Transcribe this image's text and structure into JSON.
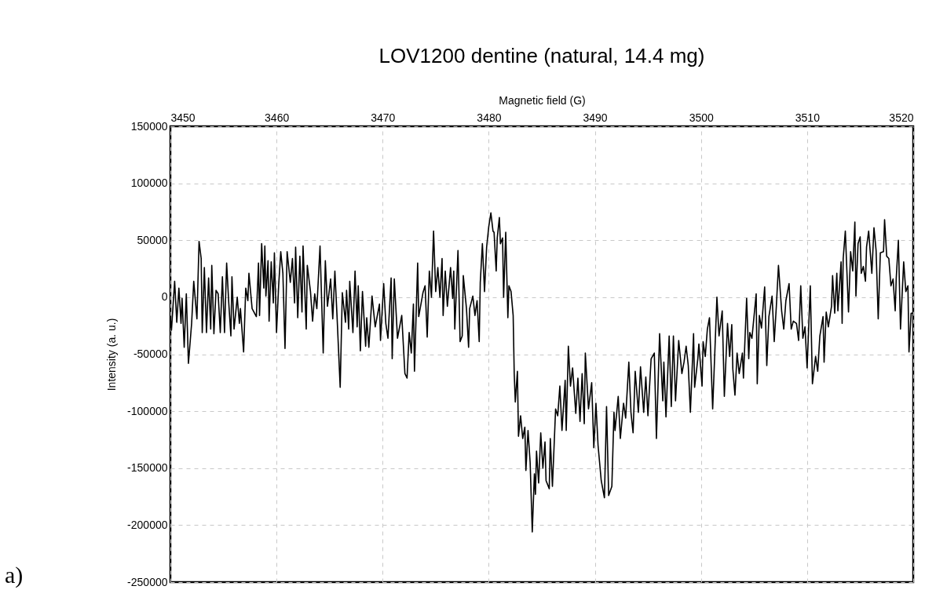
{
  "chart_data": {
    "type": "line",
    "title": "LOV1200 dentine (natural, 14.4 mg)",
    "xlabel": "Magnetic field (G)",
    "ylabel": "Intensity (a. u.)",
    "annotations": [
      "a)"
    ],
    "xlim": [
      3450,
      3520
    ],
    "xticks": [
      3450,
      3460,
      3470,
      3480,
      3490,
      3500,
      3510,
      3520
    ],
    "ylim": [
      -250000,
      150000
    ],
    "yticks": [
      -250000,
      -200000,
      -150000,
      -100000,
      -50000,
      0,
      50000,
      100000,
      150000
    ],
    "grid": true,
    "marker": "none",
    "line_style": "solid",
    "series": [
      {
        "color": "#000000",
        "x": [
          3450,
          3450.1,
          3450.4,
          3450.6,
          3450.8,
          3451.0,
          3451.1,
          3451.3,
          3451.5,
          3451.7,
          3452.0,
          3452.2,
          3452.5,
          3452.7,
          3452.9,
          3453.0,
          3453.2,
          3453.4,
          3453.6,
          3453.8,
          3453.9,
          3454.1,
          3454.3,
          3454.5,
          3454.7,
          3454.9,
          3455.1,
          3455.3,
          3455.5,
          3455.7,
          3455.8,
          3456.0,
          3456.3,
          3456.5,
          3456.6,
          3456.9,
          3457.1,
          3457.3,
          3457.4,
          3457.7,
          3458.1,
          3458.3,
          3458.4,
          3458.6,
          3458.8,
          3458.9,
          3459.0,
          3459.2,
          3459.3,
          3459.5,
          3459.7,
          3459.8,
          3460.0,
          3460.2,
          3460.4,
          3460.6,
          3460.8,
          3461.0,
          3461.3,
          3461.5,
          3461.7,
          3461.8,
          3462.0,
          3462.2,
          3462.4,
          3462.5,
          3462.8,
          3462.9,
          3463.2,
          3463.4,
          3463.6,
          3463.8,
          3464.1,
          3464.4,
          3464.6,
          3464.8,
          3465.1,
          3465.3,
          3465.5,
          3465.7,
          3466.0,
          3466.2,
          3466.5,
          3466.6,
          3466.8,
          3466.9,
          3467.2,
          3467.4,
          3467.6,
          3467.7,
          3467.9,
          3468.1,
          3468.4,
          3468.5,
          3468.7,
          3469.0,
          3469.3,
          3469.7,
          3469.8,
          3470.1,
          3470.3,
          3470.5,
          3470.8,
          3470.9,
          3471.1,
          3471.4,
          3471.8,
          3472.1,
          3472.3,
          3472.5,
          3472.7,
          3472.9,
          3473.0,
          3473.3,
          3473.4,
          3473.8,
          3474.0,
          3474.2,
          3474.4,
          3474.6,
          3474.7,
          3474.8,
          3475.0,
          3475.2,
          3475.4,
          3475.6,
          3475.7,
          3475.9,
          3476.1,
          3476.4,
          3476.6,
          3476.7,
          3476.8,
          3477.1,
          3477.3,
          3477.5,
          3477.6,
          3477.9,
          3478.1,
          3478.2,
          3478.5,
          3478.7,
          3478.9,
          3479.1,
          3479.2,
          3479.4,
          3479.6,
          3479.8,
          3480.0,
          3480.2,
          3480.4,
          3480.5,
          3480.7,
          3480.8,
          3481.0,
          3481.1,
          3481.3,
          3481.4,
          3481.6,
          3481.8,
          3481.9,
          3482.1,
          3482.3,
          3482.4,
          3482.5,
          3482.7,
          3482.8,
          3483.0,
          3483.2,
          3483.4,
          3483.5,
          3483.7,
          3483.9,
          3484.1,
          3484.3,
          3484.4,
          3484.5,
          3484.7,
          3484.9,
          3485.1,
          3485.3,
          3485.4,
          3485.7,
          3485.8,
          3486.0,
          3486.3,
          3486.5,
          3486.7,
          3486.9,
          3487.2,
          3487.3,
          3487.5,
          3487.7,
          3487.9,
          3488.2,
          3488.4,
          3488.6,
          3488.8,
          3489.0,
          3489.1,
          3489.4,
          3489.7,
          3489.9,
          3490.1,
          3490.3,
          3490.6,
          3490.9,
          3491.1,
          3491.3,
          3491.6,
          3491.8,
          3491.9,
          3492.2,
          3492.4,
          3492.7,
          3492.9,
          3493.2,
          3493.4,
          3493.6,
          3493.8,
          3494.1,
          3494.3,
          3494.6,
          3494.8,
          3495.0,
          3495.3,
          3495.6,
          3495.8,
          3496.1,
          3496.4,
          3496.5,
          3496.7,
          3497.0,
          3497.2,
          3497.4,
          3497.6,
          3497.9,
          3498.2,
          3498.4,
          3498.6,
          3498.8,
          3499.0,
          3499.3,
          3499.4,
          3499.7,
          3499.8,
          3500.1,
          3500.2,
          3500.4,
          3500.6,
          3500.8,
          3501.1,
          3501.5,
          3501.7,
          3502.0,
          3502.2,
          3502.5,
          3502.7,
          3502.9,
          3503.0,
          3503.2,
          3503.4,
          3503.6,
          3503.9,
          3504.0,
          3504.3,
          3504.5,
          3504.6,
          3504.8,
          3505.2,
          3505.3,
          3505.5,
          3505.7,
          3506.0,
          3506.2,
          3506.4,
          3506.7,
          3506.9,
          3507.1,
          3507.3,
          3507.6,
          3507.8,
          3508.0,
          3508.3,
          3508.5,
          3508.7,
          3509.0,
          3509.2,
          3509.4,
          3509.6,
          3509.8,
          3510.0,
          3510.3,
          3510.5,
          3510.8,
          3511.0,
          3511.2,
          3511.5,
          3511.6,
          3511.8,
          3512.0,
          3512.3,
          3512.4,
          3512.6,
          3512.8,
          3512.9,
          3513.2,
          3513.3,
          3513.4,
          3513.6,
          3513.9,
          3514.1,
          3514.3,
          3514.5,
          3514.6,
          3514.8,
          3515.0,
          3515.1,
          3515.3,
          3515.5,
          3515.6,
          3515.8,
          3516.1,
          3516.3,
          3516.5,
          3516.7,
          3516.9,
          3517.2,
          3517.3,
          3517.5,
          3517.7,
          3517.9,
          3518.1,
          3518.3,
          3518.4,
          3518.6,
          3518.8,
          3519.1,
          3519.3,
          3519.5,
          3519.6,
          3519.8,
          3520.0
        ],
        "values": [
          -18000,
          -29000,
          14000,
          -22000,
          8000,
          -23000,
          -1000,
          -44000,
          3000,
          -58000,
          -23000,
          14000,
          -19000,
          49000,
          34000,
          -31000,
          26000,
          -31000,
          17000,
          -28000,
          28000,
          -32000,
          6000,
          3000,
          -31000,
          18000,
          -31000,
          30000,
          -5000,
          -34000,
          18000,
          -28000,
          0,
          -23000,
          -10000,
          -48000,
          8000,
          -3000,
          21000,
          -10000,
          -17000,
          30000,
          -16000,
          47000,
          8000,
          45000,
          1000,
          32000,
          -21000,
          31000,
          -5000,
          39000,
          -31000,
          10000,
          40000,
          21000,
          -45000,
          40000,
          13000,
          34000,
          -5000,
          44000,
          -18000,
          36000,
          -13000,
          45000,
          -28000,
          28000,
          5000,
          -21000,
          3000,
          -10000,
          45000,
          -49000,
          32000,
          -8000,
          16000,
          -19000,
          23000,
          -16000,
          -79000,
          4000,
          -22000,
          6000,
          -28000,
          14000,
          -31000,
          23000,
          -26000,
          10000,
          -47000,
          5000,
          -43000,
          -18000,
          -44000,
          1000,
          -26000,
          -6000,
          -38000,
          12000,
          -23000,
          -36000,
          17000,
          -54000,
          16000,
          -36000,
          -16000,
          -67000,
          -71000,
          -31000,
          -49000,
          -6000,
          -65000,
          30000,
          -17000,
          4000,
          10000,
          -35000,
          23000,
          0,
          30000,
          58000,
          5000,
          26000,
          0,
          34000,
          -16000,
          23000,
          -8000,
          26000,
          -1000,
          23000,
          -28000,
          41000,
          -39000,
          -34000,
          19000,
          -10000,
          -44000,
          -10000,
          1000,
          -16000,
          -3000,
          -39000,
          13000,
          47000,
          5000,
          44000,
          62000,
          74000,
          58000,
          57000,
          23000,
          52000,
          70000,
          47000,
          52000,
          0,
          57000,
          -18000,
          10000,
          5000,
          -16000,
          -67000,
          -92000,
          -65000,
          -122000,
          -104000,
          -124000,
          -114000,
          -152000,
          -117000,
          -145000,
          -206000,
          -155000,
          -173000,
          -135000,
          -163000,
          -119000,
          -150000,
          -127000,
          -161000,
          -168000,
          -124000,
          -166000,
          -98000,
          -104000,
          -78000,
          -117000,
          -73000,
          -117000,
          -43000,
          -78000,
          -62000,
          -102000,
          -71000,
          -109000,
          -67000,
          -111000,
          -49000,
          -98000,
          -75000,
          -132000,
          -93000,
          -130000,
          -161000,
          -176000,
          -96000,
          -174000,
          -166000,
          -101000,
          -117000,
          -87000,
          -124000,
          -93000,
          -106000,
          -57000,
          -101000,
          -119000,
          -65000,
          -101000,
          -61000,
          -101000,
          -70000,
          -104000,
          -54000,
          -49000,
          -124000,
          -32000,
          -91000,
          -57000,
          -105000,
          -34000,
          -96000,
          -34000,
          -91000,
          -38000,
          -67000,
          -57000,
          -43000,
          -60000,
          -101000,
          -32000,
          -79000,
          -54000,
          -41000,
          -78000,
          -39000,
          -52000,
          -28000,
          -18000,
          -98000,
          0,
          -34000,
          -12000,
          -87000,
          -23000,
          -52000,
          -24000,
          -63000,
          -86000,
          -49000,
          -67000,
          -49000,
          -71000,
          -1000,
          -54000,
          -31000,
          -36000,
          3000,
          -76000,
          -16000,
          -27000,
          9000,
          -60000,
          -17000,
          1000,
          -39000,
          -8000,
          28000,
          -12000,
          -28000,
          -3000,
          12000,
          -28000,
          -21000,
          -23000,
          -38000,
          10000,
          -36000,
          -26000,
          -62000,
          10000,
          -76000,
          -52000,
          -65000,
          -34000,
          -17000,
          -57000,
          -13000,
          -26000,
          -8000,
          19000,
          -14000,
          21000,
          -12000,
          31000,
          -23000,
          34000,
          58000,
          -13000,
          40000,
          23000,
          66000,
          1000,
          47000,
          53000,
          21000,
          27000,
          14000,
          44000,
          58000,
          21000,
          61000,
          41000,
          -19000,
          39000,
          40000,
          68000,
          36000,
          34000,
          10000,
          16000,
          -12000,
          17000,
          50000,
          -28000,
          31000,
          5000,
          10000,
          -48000,
          -14000,
          -14000
        ]
      }
    ]
  }
}
